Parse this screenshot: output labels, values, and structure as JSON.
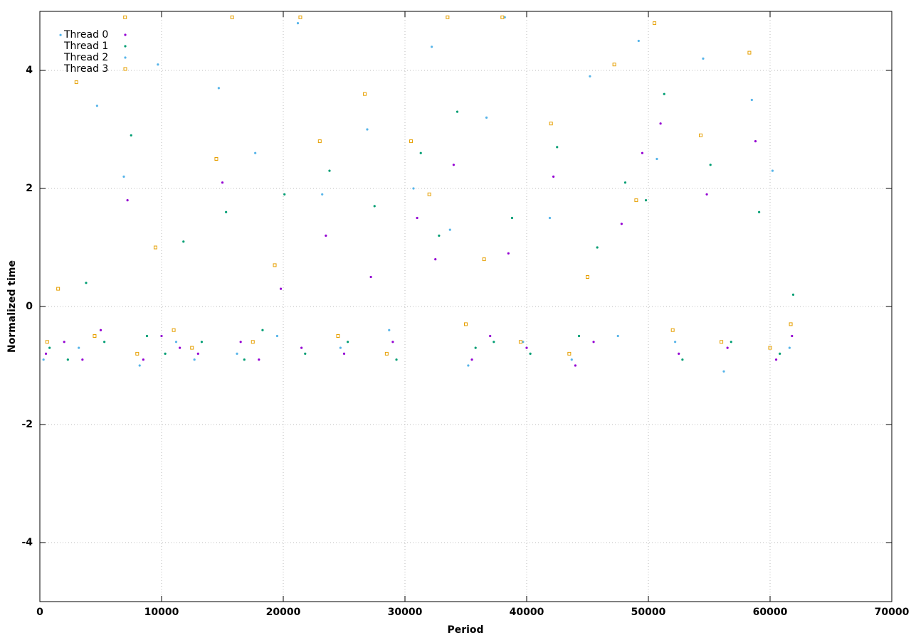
{
  "chart_data": {
    "type": "scatter",
    "x_label": "Period",
    "y_label": "Normalized time",
    "xlim": [
      0,
      70000
    ],
    "ylim": [
      -5,
      5
    ],
    "xticks": [
      0,
      10000,
      20000,
      30000,
      40000,
      50000,
      60000,
      70000
    ],
    "yticks": [
      -4,
      -2,
      0,
      2,
      4
    ],
    "grid": true,
    "legend": "top-left",
    "series": [
      {
        "name": "Thread 0",
        "color": "#9400d3",
        "marker": "dot",
        "x": [
          500,
          2000,
          3500,
          5000,
          7200,
          8500,
          10000,
          11500,
          13000,
          15000,
          16500,
          18000,
          19800,
          21500,
          23500,
          25000,
          27200,
          29000,
          31000,
          32500,
          34000,
          35500,
          37000,
          38500,
          40000,
          42200,
          44000,
          45500,
          47800,
          49500,
          51000,
          52500,
          54800,
          56500,
          58800,
          60500,
          61800
        ],
        "values": [
          -0.8,
          -0.6,
          -0.9,
          -0.4,
          1.8,
          -0.9,
          -0.5,
          -0.7,
          -0.8,
          2.1,
          -0.6,
          -0.9,
          0.3,
          -0.7,
          1.2,
          -0.8,
          0.5,
          -0.6,
          1.5,
          0.8,
          2.4,
          -0.9,
          -0.5,
          0.9,
          -0.7,
          2.2,
          -1.0,
          -0.6,
          1.4,
          2.6,
          3.1,
          -0.8,
          1.9,
          -0.7,
          2.8,
          -0.9,
          -0.5
        ]
      },
      {
        "name": "Thread 1",
        "color": "#009e73",
        "marker": "dot",
        "x": [
          800,
          2300,
          3800,
          5300,
          7500,
          8800,
          10300,
          11800,
          13300,
          15300,
          16800,
          18300,
          20100,
          21800,
          23800,
          25300,
          27500,
          29300,
          31300,
          32800,
          34300,
          35800,
          37300,
          38800,
          40300,
          42500,
          44300,
          45800,
          48100,
          49800,
          51300,
          52800,
          55100,
          56800,
          59100,
          60800,
          61900
        ],
        "values": [
          -0.7,
          -0.9,
          0.4,
          -0.6,
          2.9,
          -0.5,
          -0.8,
          1.1,
          -0.6,
          1.6,
          -0.9,
          -0.4,
          1.9,
          -0.8,
          2.3,
          -0.6,
          1.7,
          -0.9,
          2.6,
          1.2,
          3.3,
          -0.7,
          -0.6,
          1.5,
          -0.8,
          2.7,
          -0.5,
          1.0,
          2.1,
          1.8,
          3.6,
          -0.9,
          2.4,
          -0.6,
          1.6,
          -0.8,
          0.2
        ]
      },
      {
        "name": "Thread 2",
        "color": "#56b4e9",
        "marker": "dot",
        "x": [
          300,
          1700,
          3200,
          4700,
          6900,
          8200,
          9700,
          11200,
          12700,
          14700,
          16200,
          17700,
          19500,
          21200,
          23200,
          24700,
          26900,
          28700,
          30700,
          32200,
          33700,
          35200,
          36700,
          38200,
          39700,
          41900,
          43700,
          45200,
          47500,
          49200,
          50700,
          52200,
          54500,
          56200,
          58500,
          60200,
          61600
        ],
        "values": [
          -0.9,
          4.6,
          -0.7,
          3.4,
          2.2,
          -1.0,
          4.1,
          -0.6,
          -0.9,
          3.7,
          -0.8,
          2.6,
          -0.5,
          4.8,
          1.9,
          -0.7,
          3.0,
          -0.4,
          2.0,
          4.4,
          1.3,
          -1.0,
          3.2,
          4.9,
          -0.6,
          1.5,
          -0.9,
          3.9,
          -0.5,
          4.5,
          2.5,
          -0.6,
          4.2,
          -1.1,
          3.5,
          2.3,
          -0.7
        ]
      },
      {
        "name": "Thread 3",
        "color": "#e69f00",
        "marker": "square",
        "x": [
          600,
          1500,
          3000,
          4500,
          7000,
          8000,
          9500,
          11000,
          12500,
          14500,
          15800,
          17500,
          19300,
          21400,
          23000,
          24500,
          26700,
          28500,
          30500,
          32000,
          33500,
          35000,
          36500,
          38000,
          39500,
          42000,
          43500,
          45000,
          47200,
          49000,
          50500,
          52000,
          54300,
          56000,
          58300,
          60000,
          61700
        ],
        "values": [
          -0.6,
          0.3,
          3.8,
          -0.5,
          4.9,
          -0.8,
          1.0,
          -0.4,
          -0.7,
          2.5,
          4.9,
          -0.6,
          0.7,
          4.9,
          2.8,
          -0.5,
          3.6,
          -0.8,
          2.8,
          1.9,
          4.9,
          -0.3,
          0.8,
          4.9,
          -0.6,
          3.1,
          -0.8,
          0.5,
          4.1,
          1.8,
          4.8,
          -0.4,
          2.9,
          -0.6,
          4.3,
          -0.7,
          -0.3
        ]
      }
    ]
  }
}
